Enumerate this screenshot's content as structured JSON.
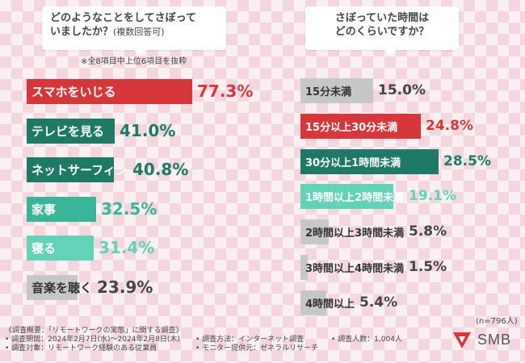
{
  "questions": {
    "left_line1": "どのようなことをしてさぼって",
    "left_line2": "いましたか？",
    "left_sub": "(複数回答可)",
    "right_line1": "さぼっていた時間は",
    "right_line2": "どのくらいですか？"
  },
  "note": "※全8項目中上位6項目を抜粋",
  "n_label": "(n=796人)",
  "chart_data": [
    {
      "type": "bar",
      "orientation": "horizontal",
      "categories": [
        "スマホをいじる",
        "テレビを見る",
        "ネットサーフィン",
        "家事",
        "寝る",
        "音楽を聴く"
      ],
      "values": [
        77.3,
        41.0,
        40.8,
        32.5,
        31.4,
        23.9
      ],
      "labels": [
        "77.3%",
        "41.0%",
        "40.8%",
        "32.5%",
        "31.4%",
        "23.9%"
      ],
      "colors": [
        "#d5373a",
        "#1e7a66",
        "#1e7a66",
        "#3ab59a",
        "#62d2b8",
        "#c7c7c7"
      ],
      "text_colors": [
        "#d5373a",
        "#1e7a66",
        "#1e7a66",
        "#3ab59a",
        "#62d2b8",
        "#444444"
      ]
    },
    {
      "type": "bar",
      "orientation": "horizontal",
      "categories": [
        "15分未満",
        "15分以上30分未満",
        "30分以上1時間未満",
        "1時間以上2時間未満",
        "2時間以上3時間未満",
        "3時間以上4時間未満",
        "4時間以上"
      ],
      "values": [
        15.0,
        24.8,
        28.5,
        19.1,
        5.8,
        1.5,
        5.4
      ],
      "labels": [
        "15.0%",
        "24.8%",
        "28.5%",
        "19.1%",
        "5.8%",
        "1.5%",
        "5.4%"
      ],
      "colors": [
        "#c7c7c7",
        "#d5373a",
        "#1e7a66",
        "#62d2b8",
        "#c7c7c7",
        "#c7c7c7",
        "#c7c7c7"
      ],
      "text_colors": [
        "#444444",
        "#d5373a",
        "#1e7a66",
        "#62d2b8",
        "#444444",
        "#444444",
        "#444444"
      ]
    }
  ],
  "footer": {
    "col1": [
      "《調査概要：「リモートワークの実態」に関する調査》",
      "• 調査期間：2024年2月7日(水)～2024年2月8日(木)",
      "• 調査対象：リモートワーク経験のある従業員"
    ],
    "col2": [
      "• 調査方法：インターネット調査",
      "• モニター提供元：ゼネラルリサーチ"
    ],
    "col3": [
      "• 調査人数：1,004人"
    ]
  },
  "logo": {
    "text": "SMB",
    "color": "#d5373a"
  }
}
